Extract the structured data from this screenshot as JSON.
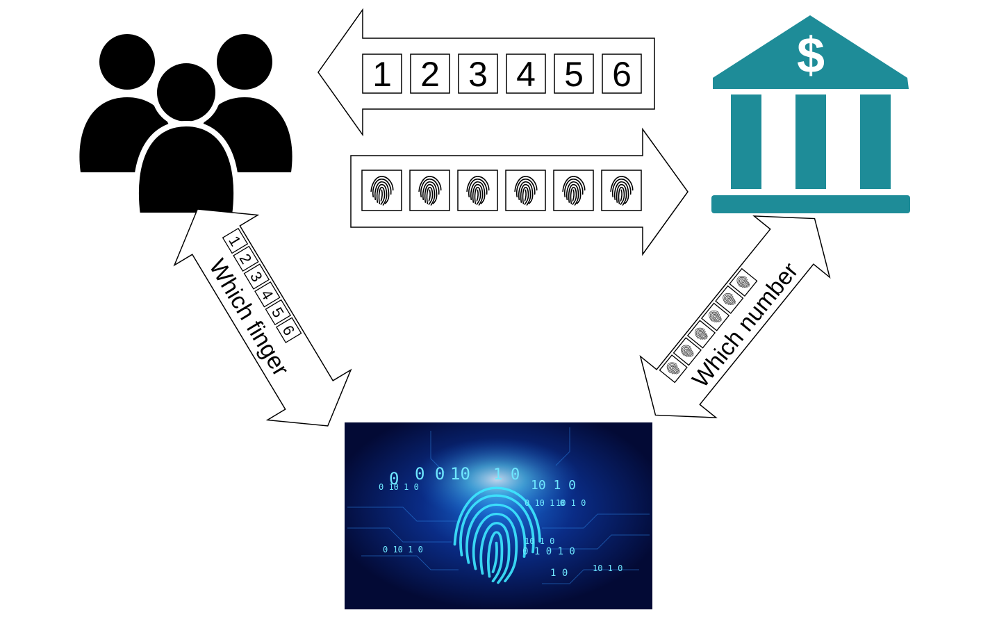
{
  "top_arrow": {
    "direction": "left",
    "numbers": [
      "1",
      "2",
      "3",
      "4",
      "5",
      "6"
    ]
  },
  "middle_arrow": {
    "direction": "right",
    "fingerprint_count": 6,
    "icon": "fingerprint-icon"
  },
  "left_diagonal_arrow": {
    "label": "Which finger",
    "numbers": [
      "1",
      "2",
      "3",
      "4",
      "5",
      "6"
    ]
  },
  "right_diagonal_arrow": {
    "label": "Which number",
    "fingerprint_count": 6,
    "icon": "fingerprint-icon"
  },
  "bank": {
    "icon": "bank-icon",
    "symbol": "$",
    "color": "#1e8c98"
  },
  "users": {
    "icon": "users-group-icon",
    "color": "#000000"
  },
  "scanner": {
    "icon": "digital-fingerprint-scanner-icon",
    "binary_text": [
      "0",
      "0 0",
      "10",
      "1",
      "0",
      "0 10 1 0",
      "10 1 0",
      "10 1 0",
      "0 10 1 0",
      "0 10 1 0",
      "10 1 0",
      "0 1 0 1 0",
      "1 0",
      "10 1 0"
    ],
    "colors": {
      "bg": "#040c3a",
      "glow": "#35e6ff"
    }
  }
}
